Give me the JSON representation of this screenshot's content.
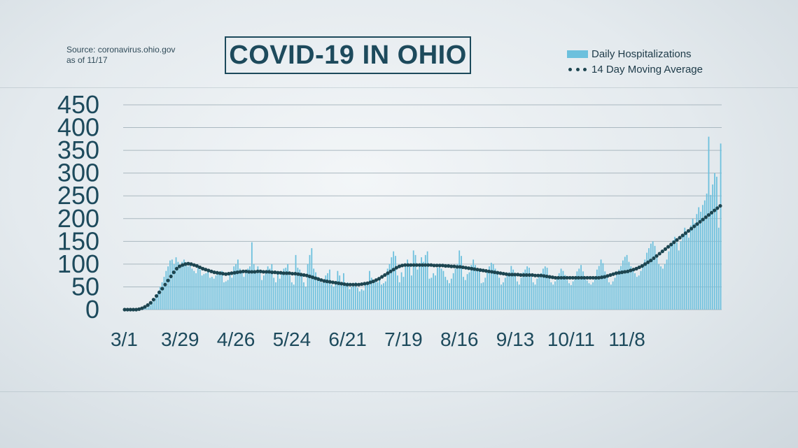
{
  "source": {
    "line1": "Source:  coronavirus.ohio.gov",
    "line2": "as of 11/17"
  },
  "title": "COVID-19 IN OHIO",
  "legend": {
    "bars": "Daily Hospitalizations",
    "dots": "14 Day Moving Average"
  },
  "colors": {
    "bar": "#6cc0dd",
    "dots": "#1d4550",
    "text": "#1d4a5c",
    "grid": "#aab8c0"
  },
  "chart_data": {
    "type": "bar",
    "title": "COVID-19 IN OHIO",
    "ylim": [
      0,
      450
    ],
    "yticks": [
      0,
      50,
      100,
      150,
      200,
      250,
      300,
      350,
      400,
      450
    ],
    "xtick_labels": [
      "3/1",
      "3/29",
      "4/26",
      "5/24",
      "6/21",
      "7/19",
      "8/16",
      "9/13",
      "10/11",
      "11/8"
    ],
    "x_start": "3/1",
    "x_end": "11/17",
    "grid": true,
    "legend_position": "top-right",
    "series": [
      {
        "name": "Daily Hospitalizations",
        "type": "bar",
        "values": [
          0,
          0,
          0,
          1,
          0,
          0,
          2,
          3,
          1,
          5,
          8,
          4,
          6,
          10,
          18,
          22,
          30,
          40,
          50,
          60,
          72,
          85,
          95,
          108,
          110,
          100,
          115,
          105,
          98,
          105,
          110,
          104,
          95,
          100,
          90,
          85,
          80,
          92,
          88,
          75,
          78,
          80,
          85,
          70,
          72,
          68,
          75,
          82,
          78,
          85,
          60,
          62,
          65,
          80,
          70,
          95,
          100,
          110,
          90,
          82,
          72,
          85,
          90,
          95,
          148,
          100,
          80,
          95,
          88,
          65,
          75,
          82,
          95,
          90,
          100,
          70,
          60,
          85,
          68,
          80,
          90,
          92,
          100,
          75,
          60,
          55,
          120,
          92,
          88,
          75,
          60,
          50,
          100,
          120,
          135,
          90,
          82,
          72,
          68,
          60,
          65,
          75,
          80,
          88,
          55,
          50,
          62,
          85,
          75,
          60,
          80,
          55,
          60,
          45,
          50,
          55,
          60,
          48,
          40,
          45,
          42,
          55,
          60,
          85,
          70,
          58,
          62,
          60,
          68,
          55,
          58,
          62,
          90,
          100,
          115,
          128,
          118,
          75,
          60,
          82,
          72,
          95,
          110,
          100,
          75,
          130,
          120,
          88,
          95,
          115,
          105,
          120,
          128,
          68,
          70,
          80,
          75,
          92,
          100,
          90,
          85,
          72,
          65,
          58,
          68,
          80,
          90,
          100,
          130,
          118,
          72,
          65,
          78,
          82,
          98,
          110,
          98,
          90,
          86,
          58,
          60,
          70,
          82,
          95,
          103,
          100,
          90,
          85,
          70,
          55,
          60,
          70,
          78,
          82,
          96,
          88,
          75,
          62,
          55,
          70,
          82,
          88,
          95,
          92,
          72,
          60,
          55,
          68,
          75,
          80,
          90,
          95,
          92,
          70,
          60,
          55,
          62,
          72,
          80,
          90,
          85,
          76,
          65,
          58,
          54,
          62,
          72,
          84,
          90,
          98,
          84,
          72,
          64,
          58,
          55,
          60,
          72,
          88,
          96,
          110,
          102,
          84,
          70,
          60,
          55,
          62,
          70,
          78,
          88,
          96,
          108,
          116,
          120,
          105,
          95,
          88,
          80,
          72,
          75,
          85,
          95,
          110,
          125,
          135,
          145,
          150,
          140,
          120,
          100,
          95,
          90,
          100,
          110,
          128,
          140,
          152,
          160,
          148,
          130,
          150,
          165,
          180,
          172,
          158,
          185,
          200,
          190,
          210,
          225,
          215,
          230,
          240,
          255,
          380,
          252,
          275,
          300,
          292,
          180,
          365
        ]
      },
      {
        "name": "14 Day Moving Average",
        "type": "dots",
        "values": [
          0,
          0,
          0,
          0,
          0,
          1,
          3,
          6,
          10,
          15,
          22,
          30,
          38,
          46,
          55,
          64,
          73,
          82,
          90,
          95,
          98,
          100,
          101,
          100,
          98,
          96,
          93,
          90,
          88,
          86,
          84,
          82,
          81,
          80,
          79,
          78,
          79,
          80,
          81,
          82,
          83,
          84,
          84,
          83,
          83,
          83,
          84,
          84,
          83,
          83,
          83,
          82,
          82,
          81,
          81,
          80,
          80,
          80,
          79,
          79,
          78,
          77,
          76,
          75,
          73,
          71,
          69,
          67,
          65,
          63,
          62,
          61,
          60,
          59,
          58,
          57,
          56,
          55,
          55,
          55,
          55,
          55,
          56,
          57,
          58,
          60,
          62,
          65,
          68,
          72,
          76,
          80,
          84,
          88,
          92,
          95,
          97,
          98,
          98,
          98,
          98,
          98,
          98,
          98,
          98,
          98,
          98,
          97,
          97,
          97,
          97,
          96,
          96,
          95,
          95,
          94,
          94,
          93,
          92,
          91,
          90,
          89,
          88,
          87,
          86,
          85,
          84,
          83,
          82,
          81,
          80,
          79,
          78,
          77,
          77,
          77,
          77,
          76,
          76,
          76,
          76,
          76,
          75,
          75,
          75,
          74,
          73,
          72,
          71,
          70,
          70,
          70,
          70,
          70,
          70,
          70,
          70,
          70,
          70,
          70,
          70,
          70,
          70,
          70,
          70,
          71,
          72,
          74,
          76,
          78,
          80,
          81,
          82,
          83,
          84,
          86,
          88,
          90,
          93,
          96,
          100,
          104,
          108,
          113,
          118,
          123,
          128,
          133,
          138,
          143,
          148,
          153,
          158,
          163,
          168,
          173,
          178,
          183,
          188,
          193,
          198,
          203,
          208,
          213,
          218,
          223,
          228
        ]
      }
    ]
  }
}
